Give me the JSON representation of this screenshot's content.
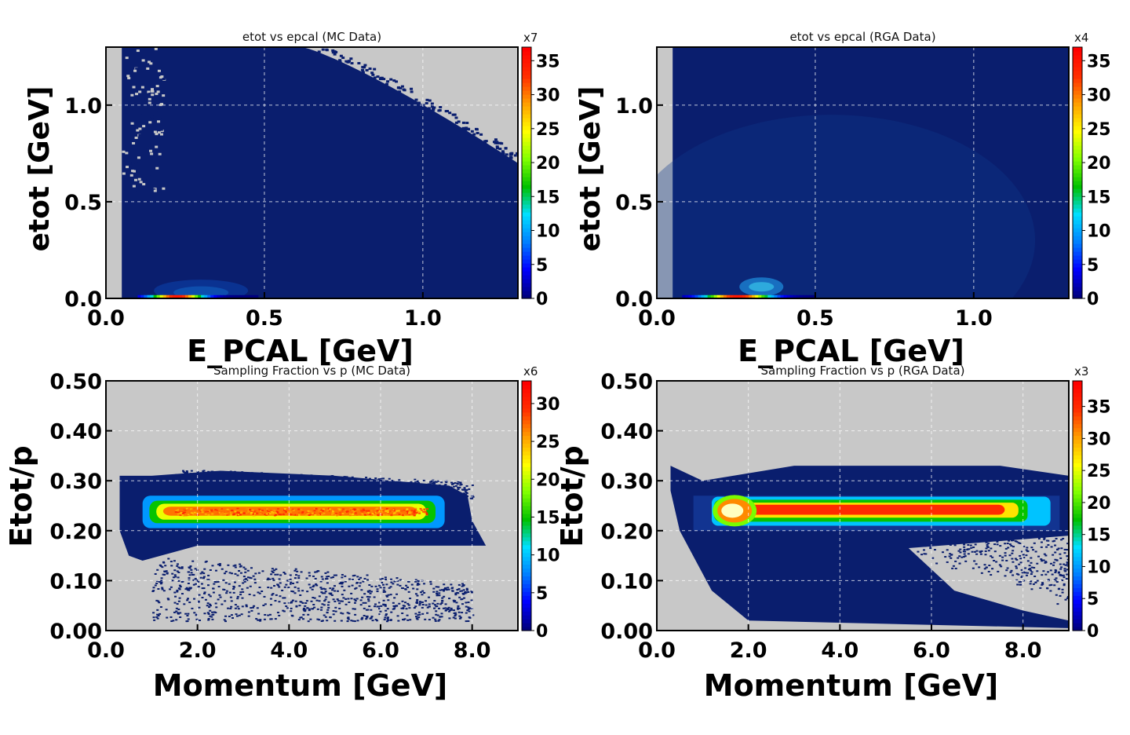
{
  "figure": {
    "colorscale": [
      "#00007f",
      "#0000ff",
      "#0080ff",
      "#00e0ff",
      "#00c000",
      "#80ff00",
      "#ffff00",
      "#ffa000",
      "#ff3000",
      "#ff0000"
    ],
    "empty_color": "#c8c8c8",
    "background_color": "#0a1e6e"
  },
  "chart_data": [
    {
      "type": "heatmap",
      "title": "etot vs epcal (MC Data)",
      "xlabel": "E_PCAL  [GeV]",
      "ylabel": "etot [GeV]",
      "xlim": [
        0.0,
        1.3
      ],
      "ylim": [
        0.0,
        1.3
      ],
      "xticks": [
        "0.0",
        "0.5",
        "1.0"
      ],
      "xtick_values": [
        0.0,
        0.5,
        1.0
      ],
      "yticks": [
        "0.0",
        "0.5",
        "1.0"
      ],
      "ytick_values": [
        0.0,
        0.5,
        1.0
      ],
      "grid": true,
      "colorbar": {
        "multiplier": "x7",
        "ticks": [
          "0",
          "5",
          "10",
          "15",
          "20",
          "25",
          "30",
          "35"
        ],
        "tick_values": [
          0,
          5,
          10,
          15,
          20,
          25,
          30,
          35
        ],
        "max": 37
      },
      "hotspots": [
        {
          "x": 0.2,
          "y": 0.0,
          "label": "band along etot = 0 (peak near E_PCAL 0.1–0.35 GeV)"
        },
        {
          "x": 0.3,
          "y": 0.05,
          "label": "faint cluster"
        }
      ]
    },
    {
      "type": "heatmap",
      "title": "etot vs epcal (RGA Data)",
      "xlabel": "E_PCAL  [GeV]",
      "ylabel": "etot [GeV]",
      "xlim": [
        0.0,
        1.3
      ],
      "ylim": [
        0.0,
        1.3
      ],
      "xticks": [
        "0.0",
        "0.5",
        "1.0"
      ],
      "xtick_values": [
        0.0,
        0.5,
        1.0
      ],
      "yticks": [
        "0.0",
        "0.5",
        "1.0"
      ],
      "ytick_values": [
        0.0,
        0.5,
        1.0
      ],
      "grid": true,
      "colorbar": {
        "multiplier": "x4",
        "ticks": [
          "0",
          "5",
          "10",
          "15",
          "20",
          "25",
          "30",
          "35"
        ],
        "tick_values": [
          0,
          5,
          10,
          15,
          20,
          25,
          30,
          35
        ],
        "max": 37
      },
      "hotspots": [
        {
          "x": 0.3,
          "y": 0.0,
          "label": "band along etot = 0 (peak near E_PCAL 0.1–0.4 GeV)"
        },
        {
          "x": 0.33,
          "y": 0.06,
          "label": "cluster"
        }
      ]
    },
    {
      "type": "heatmap",
      "title": "Sampling Fraction vs p (MC Data)",
      "xlabel": "Momentum  [GeV]",
      "ylabel": "Etot/p",
      "xlim": [
        0.0,
        9.0
      ],
      "ylim": [
        0.0,
        0.5
      ],
      "xticks": [
        "0.0",
        "2.0",
        "4.0",
        "6.0",
        "8.0"
      ],
      "xtick_values": [
        0.0,
        2.0,
        4.0,
        6.0,
        8.0
      ],
      "yticks": [
        "0.00",
        "0.10",
        "0.20",
        "0.30",
        "0.40",
        "0.50"
      ],
      "ytick_values": [
        0.0,
        0.1,
        0.2,
        0.3,
        0.4,
        0.5
      ],
      "grid": true,
      "colorbar": {
        "multiplier": "x6",
        "ticks": [
          "0",
          "5",
          "10",
          "15",
          "20",
          "25",
          "30"
        ],
        "tick_values": [
          0,
          5,
          10,
          15,
          20,
          25,
          30
        ],
        "max": 33
      },
      "band": {
        "x_start": 0.8,
        "x_end": 7.4,
        "peak_y": 0.24,
        "peak_value_fraction": 0.85
      }
    },
    {
      "type": "heatmap",
      "title": "Sampling Fraction vs p (RGA Data)",
      "xlabel": "Momentum  [GeV]",
      "ylabel": "Etot/p",
      "xlim": [
        0.0,
        9.0
      ],
      "ylim": [
        0.0,
        0.5
      ],
      "xticks": [
        "0.0",
        "2.0",
        "4.0",
        "6.0",
        "8.0"
      ],
      "xtick_values": [
        0.0,
        2.0,
        4.0,
        6.0,
        8.0
      ],
      "yticks": [
        "0.00",
        "0.10",
        "0.20",
        "0.30",
        "0.40",
        "0.50"
      ],
      "ytick_values": [
        0.0,
        0.1,
        0.2,
        0.3,
        0.4,
        0.5
      ],
      "grid": true,
      "colorbar": {
        "multiplier": "x3",
        "ticks": [
          "0",
          "5",
          "10",
          "15",
          "20",
          "25",
          "30",
          "35"
        ],
        "tick_values": [
          0,
          5,
          10,
          15,
          20,
          25,
          30,
          35
        ],
        "max": 39
      },
      "band": {
        "x_start": 1.3,
        "x_end": 8.5,
        "peak_y": 0.24,
        "peak_value_fraction": 1.0
      }
    }
  ]
}
